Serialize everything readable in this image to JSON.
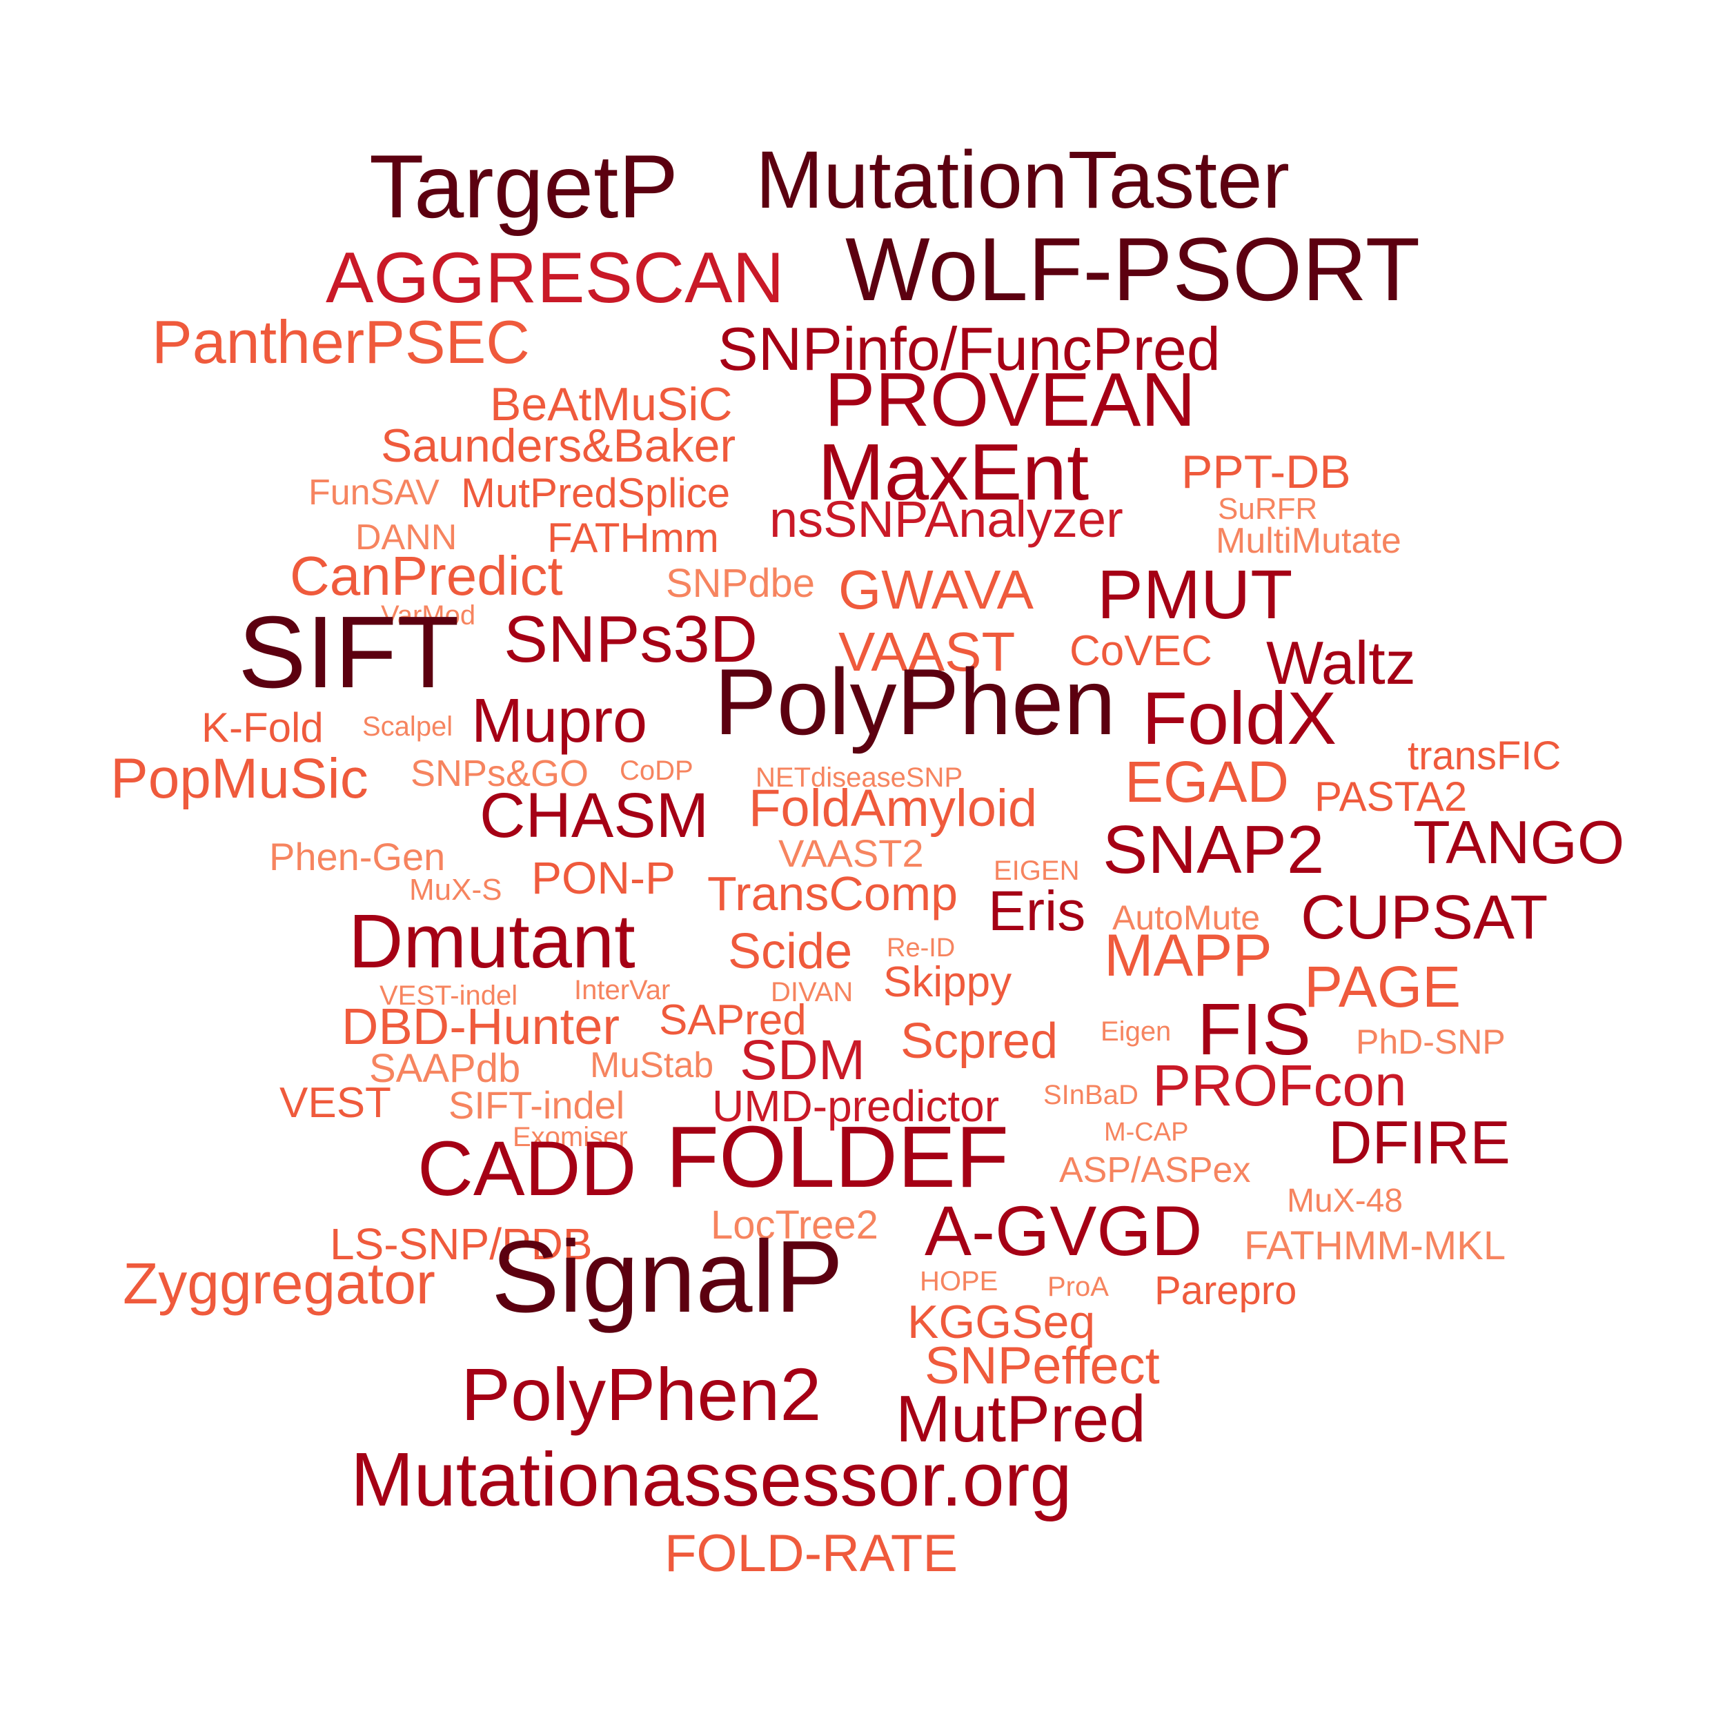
{
  "palette": {
    "darkest": "#5c0010",
    "dark": "#a50015",
    "mid": "#c91927",
    "orange": "#ef5a3c",
    "light": "#f6845f"
  },
  "words": [
    {
      "text": "TargetP",
      "tone": "darkest"
    },
    {
      "text": "MutationTaster",
      "tone": "darkest"
    },
    {
      "text": "AGGRESCAN",
      "tone": "mid"
    },
    {
      "text": "WoLF-PSORT",
      "tone": "darkest"
    },
    {
      "text": "PantherPSEC",
      "tone": "orange"
    },
    {
      "text": "SNPinfo/FuncPred",
      "tone": "dark"
    },
    {
      "text": "BeAtMuSiC",
      "tone": "orange"
    },
    {
      "text": "PROVEAN",
      "tone": "dark"
    },
    {
      "text": "Saunders&Baker",
      "tone": "orange"
    },
    {
      "text": "MaxEnt",
      "tone": "dark"
    },
    {
      "text": "PPT-DB",
      "tone": "orange"
    },
    {
      "text": "FunSAV",
      "tone": "light"
    },
    {
      "text": "MutPredSplice",
      "tone": "orange"
    },
    {
      "text": "SuRFR",
      "tone": "light"
    },
    {
      "text": "DANN",
      "tone": "light"
    },
    {
      "text": "FATHmm",
      "tone": "orange"
    },
    {
      "text": "nsSNPAnalyzer",
      "tone": "mid"
    },
    {
      "text": "MultiMutate",
      "tone": "light"
    },
    {
      "text": "CanPredict",
      "tone": "orange"
    },
    {
      "text": "SNPdbe",
      "tone": "light"
    },
    {
      "text": "GWAVA",
      "tone": "orange"
    },
    {
      "text": "PMUT",
      "tone": "dark"
    },
    {
      "text": "VarMod",
      "tone": "light"
    },
    {
      "text": "SIFT",
      "tone": "darkest"
    },
    {
      "text": "SNPs3D",
      "tone": "dark"
    },
    {
      "text": "VAAST",
      "tone": "orange"
    },
    {
      "text": "CoVEC",
      "tone": "orange"
    },
    {
      "text": "Waltz",
      "tone": "dark"
    },
    {
      "text": "PolyPhen",
      "tone": "darkest"
    },
    {
      "text": "FoldX",
      "tone": "dark"
    },
    {
      "text": "K-Fold",
      "tone": "orange"
    },
    {
      "text": "Scalpel",
      "tone": "light"
    },
    {
      "text": "Mupro",
      "tone": "dark"
    },
    {
      "text": "transFIC",
      "tone": "orange"
    },
    {
      "text": "PopMuSic",
      "tone": "orange"
    },
    {
      "text": "SNPs&GO",
      "tone": "light"
    },
    {
      "text": "CoDP",
      "tone": "light"
    },
    {
      "text": "NETdiseaseSNP",
      "tone": "light"
    },
    {
      "text": "EGAD",
      "tone": "orange"
    },
    {
      "text": "CHASM",
      "tone": "dark"
    },
    {
      "text": "FoldAmyloid",
      "tone": "orange"
    },
    {
      "text": "PASTA2",
      "tone": "orange"
    },
    {
      "text": "SNAP2",
      "tone": "dark"
    },
    {
      "text": "TANGO",
      "tone": "dark"
    },
    {
      "text": "Phen-Gen",
      "tone": "light"
    },
    {
      "text": "VAAST2",
      "tone": "light"
    },
    {
      "text": "EIGEN",
      "tone": "light"
    },
    {
      "text": "MuX-S",
      "tone": "light"
    },
    {
      "text": "PON-P",
      "tone": "orange"
    },
    {
      "text": "TransComp",
      "tone": "orange"
    },
    {
      "text": "Eris",
      "tone": "dark"
    },
    {
      "text": "AutoMute",
      "tone": "light"
    },
    {
      "text": "CUPSAT",
      "tone": "dark"
    },
    {
      "text": "Dmutant",
      "tone": "dark"
    },
    {
      "text": "Scide",
      "tone": "orange"
    },
    {
      "text": "Re-ID",
      "tone": "light"
    },
    {
      "text": "MAPP",
      "tone": "orange"
    },
    {
      "text": "PAGE",
      "tone": "orange"
    },
    {
      "text": "VEST-indel",
      "tone": "light"
    },
    {
      "text": "InterVar",
      "tone": "light"
    },
    {
      "text": "DIVAN",
      "tone": "light"
    },
    {
      "text": "Skippy",
      "tone": "orange"
    },
    {
      "text": "DBD-Hunter",
      "tone": "orange"
    },
    {
      "text": "SAPred",
      "tone": "orange"
    },
    {
      "text": "Scpred",
      "tone": "orange"
    },
    {
      "text": "Eigen",
      "tone": "light"
    },
    {
      "text": "FIS",
      "tone": "dark"
    },
    {
      "text": "PhD-SNP",
      "tone": "light"
    },
    {
      "text": "SAAPdb",
      "tone": "light"
    },
    {
      "text": "MuStab",
      "tone": "light"
    },
    {
      "text": "SDM",
      "tone": "mid"
    },
    {
      "text": "PROFcon",
      "tone": "mid"
    },
    {
      "text": "VEST",
      "tone": "orange"
    },
    {
      "text": "SIFT-indel",
      "tone": "light"
    },
    {
      "text": "UMD-predictor",
      "tone": "mid"
    },
    {
      "text": "SInBaD",
      "tone": "light"
    },
    {
      "text": "Exomiser",
      "tone": "light"
    },
    {
      "text": "M-CAP",
      "tone": "light"
    },
    {
      "text": "DFIRE",
      "tone": "dark"
    },
    {
      "text": "CADD",
      "tone": "dark"
    },
    {
      "text": "FOLDEF",
      "tone": "dark"
    },
    {
      "text": "ASP/ASPex",
      "tone": "light"
    },
    {
      "text": "MuX-48",
      "tone": "light"
    },
    {
      "text": "LocTree2",
      "tone": "light"
    },
    {
      "text": "LS-SNP/PDB",
      "tone": "orange"
    },
    {
      "text": "A-GVGD",
      "tone": "dark"
    },
    {
      "text": "FATHMM-MKL",
      "tone": "light"
    },
    {
      "text": "SignalP",
      "tone": "darkest"
    },
    {
      "text": "Zyggregator",
      "tone": "orange"
    },
    {
      "text": "HOPE",
      "tone": "light"
    },
    {
      "text": "ProA",
      "tone": "light"
    },
    {
      "text": "Parepro",
      "tone": "orange"
    },
    {
      "text": "KGGSeq",
      "tone": "orange"
    },
    {
      "text": "SNPeffect",
      "tone": "orange"
    },
    {
      "text": "PolyPhen2",
      "tone": "dark"
    },
    {
      "text": "MutPred",
      "tone": "dark"
    },
    {
      "text": "Mutationassessor.org",
      "tone": "dark"
    },
    {
      "text": "FOLD-RATE",
      "tone": "orange"
    }
  ]
}
